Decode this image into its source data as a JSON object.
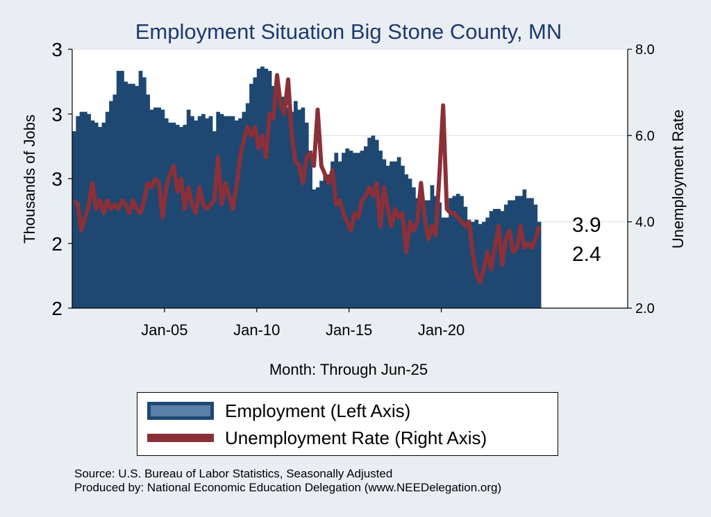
{
  "chart_data": {
    "type": "bar+line",
    "title": "Employment Situation Big Stone  County, MN",
    "xlabel": "Month: Through Jun-25",
    "ylabel_left": "Thousands of Jobs",
    "ylabel_right": "Unemployment Rate",
    "left_tick_labels": [
      "2",
      "2",
      "3",
      "3",
      "3"
    ],
    "left_range": [
      2.0,
      3.2
    ],
    "right_ticks": [
      "2.0",
      "4.0",
      "6.0",
      "8.0"
    ],
    "right_range": [
      2.0,
      8.0
    ],
    "x_range": [
      2000.0,
      2030.1
    ],
    "x_ticks": [
      {
        "label": "Jan-05",
        "value": 2005.0
      },
      {
        "label": "Jan-10",
        "value": 2010.0
      },
      {
        "label": "Jan-15",
        "value": 2015.0
      },
      {
        "label": "Jan-20",
        "value": 2020.0
      }
    ],
    "end_labels": {
      "employment": "2.4",
      "unemployment": "3.9"
    },
    "series": [
      {
        "name": "Employment (Left Axis)",
        "type": "bar",
        "color": "#1e4872",
        "x": [
          2000.1,
          2000.3,
          2000.5,
          2000.7,
          2000.9,
          2001.1,
          2001.3,
          2001.5,
          2001.7,
          2001.9,
          2002.1,
          2002.3,
          2002.5,
          2002.7,
          2002.9,
          2003.1,
          2003.3,
          2003.5,
          2003.7,
          2003.9,
          2004.1,
          2004.3,
          2004.5,
          2004.7,
          2004.9,
          2005.1,
          2005.3,
          2005.5,
          2005.7,
          2005.9,
          2006.1,
          2006.3,
          2006.5,
          2006.7,
          2006.9,
          2007.1,
          2007.3,
          2007.5,
          2007.7,
          2007.9,
          2008.1,
          2008.3,
          2008.5,
          2008.7,
          2008.9,
          2009.1,
          2009.3,
          2009.5,
          2009.7,
          2009.9,
          2010.1,
          2010.3,
          2010.5,
          2010.7,
          2010.9,
          2011.1,
          2011.3,
          2011.5,
          2011.7,
          2011.9,
          2012.1,
          2012.3,
          2012.5,
          2012.7,
          2012.9,
          2013.1,
          2013.3,
          2013.5,
          2013.7,
          2013.9,
          2014.1,
          2014.3,
          2014.5,
          2014.7,
          2014.9,
          2015.1,
          2015.3,
          2015.5,
          2015.7,
          2015.9,
          2016.1,
          2016.3,
          2016.5,
          2016.7,
          2016.9,
          2017.1,
          2017.3,
          2017.5,
          2017.7,
          2017.9,
          2018.1,
          2018.3,
          2018.5,
          2018.7,
          2018.9,
          2019.1,
          2019.3,
          2019.5,
          2019.7,
          2019.9,
          2020.1,
          2020.3,
          2020.5,
          2020.7,
          2020.9,
          2021.1,
          2021.3,
          2021.5,
          2021.7,
          2021.9,
          2022.1,
          2022.3,
          2022.5,
          2022.7,
          2022.9,
          2023.1,
          2023.3,
          2023.5,
          2023.7,
          2023.9,
          2024.1,
          2024.3,
          2024.5,
          2024.7,
          2024.9,
          2025.1,
          2025.3
        ],
        "values": [
          2.82,
          2.89,
          2.91,
          2.91,
          2.9,
          2.87,
          2.86,
          2.84,
          2.86,
          2.91,
          2.96,
          2.99,
          3.1,
          3.1,
          3.05,
          3.04,
          3.04,
          3.03,
          3.1,
          3.07,
          2.99,
          2.92,
          2.93,
          2.93,
          2.92,
          2.88,
          2.86,
          2.86,
          2.85,
          2.84,
          2.85,
          2.92,
          2.89,
          2.87,
          2.89,
          2.9,
          2.88,
          2.89,
          2.82,
          2.91,
          2.9,
          2.89,
          2.89,
          2.89,
          2.87,
          2.88,
          2.91,
          2.95,
          3.04,
          3.07,
          3.11,
          3.12,
          3.11,
          3.1,
          3.03,
          3.02,
          2.98,
          2.98,
          2.93,
          2.91,
          2.96,
          2.92,
          2.93,
          2.86,
          2.73,
          2.55,
          2.56,
          2.59,
          2.62,
          2.62,
          2.68,
          2.72,
          2.68,
          2.72,
          2.74,
          2.73,
          2.72,
          2.72,
          2.73,
          2.75,
          2.79,
          2.8,
          2.78,
          2.73,
          2.69,
          2.66,
          2.68,
          2.68,
          2.7,
          2.66,
          2.62,
          2.6,
          2.56,
          2.51,
          2.5,
          2.5,
          2.5,
          2.57,
          2.52,
          2.49,
          2.42,
          2.42,
          2.51,
          2.52,
          2.53,
          2.52,
          2.47,
          2.41,
          2.4,
          2.41,
          2.39,
          2.4,
          2.42,
          2.45,
          2.46,
          2.46,
          2.45,
          2.48,
          2.5,
          2.5,
          2.52,
          2.52,
          2.55,
          2.51,
          2.51,
          2.48,
          2.4
        ]
      },
      {
        "name": "Unemployment Rate (Right Axis)",
        "type": "line",
        "color": "#8b3038",
        "x": [
          2000.1,
          2000.3,
          2000.5,
          2000.7,
          2000.9,
          2001.1,
          2001.3,
          2001.5,
          2001.7,
          2001.9,
          2002.1,
          2002.3,
          2002.5,
          2002.7,
          2002.9,
          2003.1,
          2003.3,
          2003.5,
          2003.7,
          2003.9,
          2004.1,
          2004.3,
          2004.5,
          2004.7,
          2004.9,
          2005.1,
          2005.3,
          2005.5,
          2005.7,
          2005.9,
          2006.1,
          2006.3,
          2006.5,
          2006.7,
          2006.9,
          2007.1,
          2007.3,
          2007.5,
          2007.7,
          2007.9,
          2008.1,
          2008.3,
          2008.5,
          2008.7,
          2008.9,
          2009.1,
          2009.3,
          2009.5,
          2009.7,
          2009.9,
          2010.1,
          2010.3,
          2010.5,
          2010.7,
          2010.9,
          2011.1,
          2011.3,
          2011.5,
          2011.7,
          2011.9,
          2012.1,
          2012.3,
          2012.5,
          2012.7,
          2012.9,
          2013.1,
          2013.3,
          2013.5,
          2013.7,
          2013.9,
          2014.1,
          2014.3,
          2014.5,
          2014.7,
          2014.9,
          2015.1,
          2015.3,
          2015.5,
          2015.7,
          2015.9,
          2016.1,
          2016.3,
          2016.5,
          2016.7,
          2016.9,
          2017.1,
          2017.3,
          2017.5,
          2017.7,
          2017.9,
          2018.1,
          2018.3,
          2018.5,
          2018.7,
          2018.9,
          2019.1,
          2019.3,
          2019.5,
          2019.7,
          2019.9,
          2020.1,
          2020.3,
          2020.5,
          2020.7,
          2020.9,
          2021.1,
          2021.3,
          2021.5,
          2021.7,
          2021.9,
          2022.1,
          2022.3,
          2022.5,
          2022.7,
          2022.9,
          2023.1,
          2023.3,
          2023.5,
          2023.7,
          2023.9,
          2024.1,
          2024.3,
          2024.5,
          2024.7,
          2024.9,
          2025.1,
          2025.3
        ],
        "values": [
          4.5,
          4.4,
          3.8,
          4.1,
          4.4,
          4.9,
          4.3,
          4.5,
          4.2,
          4.5,
          4.3,
          4.4,
          4.3,
          4.5,
          4.4,
          4.2,
          4.5,
          4.3,
          4.2,
          4.5,
          4.9,
          4.8,
          5.0,
          4.9,
          4.1,
          4.8,
          5.1,
          5.3,
          4.7,
          5.0,
          4.3,
          4.8,
          4.4,
          4.2,
          4.8,
          4.4,
          4.3,
          4.4,
          4.5,
          5.5,
          4.4,
          4.9,
          4.6,
          4.3,
          4.8,
          5.5,
          5.9,
          6.2,
          6.0,
          6.2,
          5.7,
          6.0,
          5.5,
          6.5,
          6.4,
          7.4,
          6.7,
          6.5,
          7.3,
          6.0,
          5.4,
          5.3,
          4.9,
          5.5,
          5.6,
          5.3,
          6.6,
          5.3,
          5.1,
          4.9,
          5.2,
          4.4,
          4.5,
          4.2,
          4.0,
          3.8,
          4.2,
          4.1,
          4.5,
          4.6,
          4.8,
          4.6,
          4.9,
          3.9,
          4.8,
          4.3,
          3.9,
          4.3,
          4.1,
          4.2,
          3.3,
          4.0,
          3.8,
          4.0,
          4.9,
          4.1,
          3.6,
          3.9,
          3.7,
          5.1,
          6.7,
          4.3,
          4.2,
          4.2,
          4.1,
          4.0,
          3.9,
          4.0,
          3.3,
          2.8,
          2.6,
          2.9,
          3.3,
          2.9,
          3.4,
          3.9,
          3.0,
          3.6,
          3.8,
          3.3,
          3.4,
          3.9,
          3.4,
          3.5,
          3.4,
          3.6,
          3.9
        ]
      }
    ]
  },
  "footer": {
    "source": "Source: U.S. Bureau of Labor Statistics, Seasonally Adjusted",
    "producer": "Produced by: National Economic Education Delegation (www.NEEDelegation.org)"
  }
}
